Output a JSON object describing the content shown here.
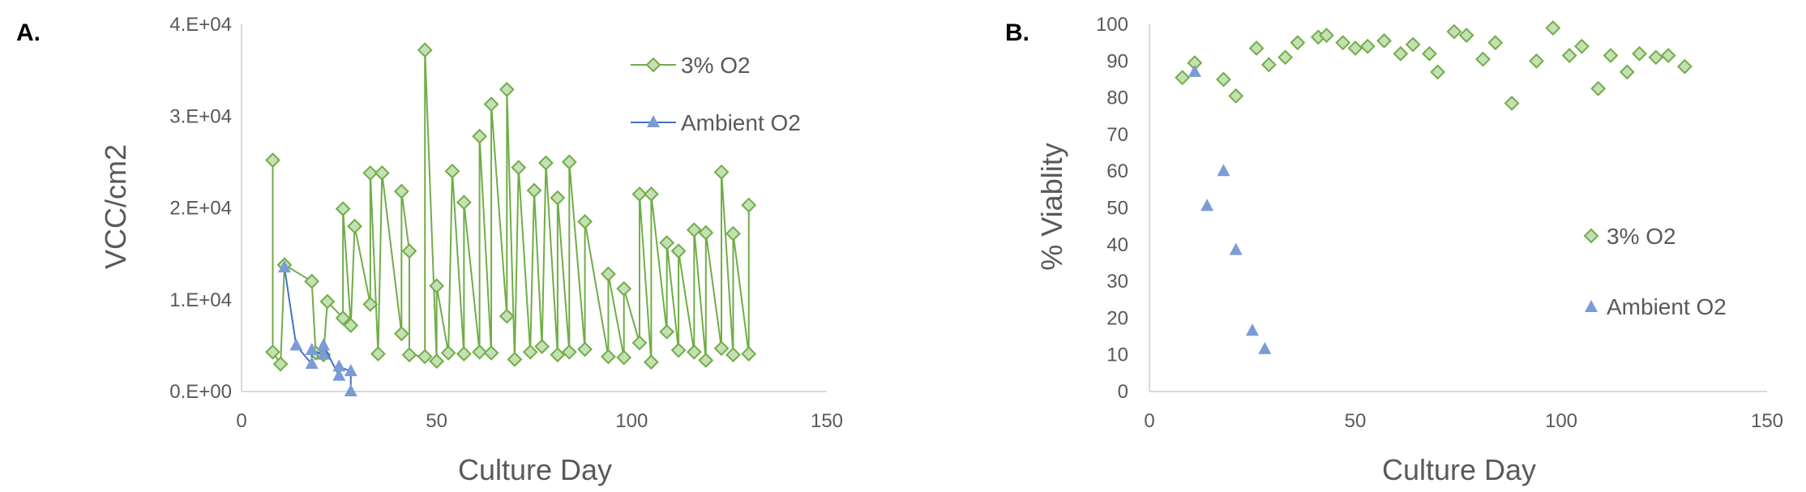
{
  "colors": {
    "series_3pct": "#70AD47",
    "series_3pct_fill": "#C5E0B4",
    "series_ambient": "#4472C4",
    "series_ambient_fill": "#7B9BD6",
    "axis": "#D9D9D9",
    "text": "#595959"
  },
  "chart_data": [
    {
      "panel_label": "A.",
      "type": "line",
      "xlabel": "Culture Day",
      "ylabel": "VCC/cm2",
      "xlim": [
        0,
        150
      ],
      "ylim": [
        0,
        40000
      ],
      "xticks": [
        0,
        50,
        100,
        150
      ],
      "xtick_labels": [
        "0",
        "50",
        "100",
        "150"
      ],
      "yticks": [
        0,
        10000,
        20000,
        30000,
        40000
      ],
      "ytick_labels": [
        "0.E+00",
        "1.E+04",
        "2.E+04",
        "3.E+04",
        "4.E+04"
      ],
      "grid": false,
      "legend_position": "top-right",
      "series": [
        {
          "name": "3% O2",
          "marker": "diamond",
          "x": [
            8,
            8,
            10,
            11,
            18,
            19,
            21,
            22,
            26,
            26,
            28,
            29,
            33,
            33,
            35,
            36,
            41,
            41,
            43,
            43,
            47,
            47,
            50,
            50,
            53,
            54,
            57,
            57,
            61,
            61,
            64,
            64,
            68,
            68,
            70,
            71,
            74,
            75,
            77,
            78,
            81,
            81,
            84,
            84,
            88,
            88,
            94,
            94,
            98,
            98,
            102,
            102,
            105,
            105,
            109,
            109,
            112,
            112,
            116,
            116,
            119,
            119,
            123,
            123,
            126,
            126,
            130,
            130
          ],
          "y": [
            25200,
            4300,
            3000,
            13800,
            12000,
            4200,
            4000,
            9800,
            8000,
            19900,
            7200,
            18000,
            9500,
            23800,
            4100,
            23800,
            6300,
            21800,
            15300,
            4000,
            3800,
            37200,
            3300,
            11500,
            4200,
            24000,
            4100,
            20600,
            4300,
            27800,
            4200,
            31300,
            8200,
            32900,
            3500,
            24400,
            4300,
            21900,
            4900,
            24900,
            4000,
            21100,
            4300,
            25000,
            4600,
            18500,
            3800,
            12800,
            3700,
            11200,
            5300,
            21500,
            3200,
            21500,
            6500,
            16200,
            4500,
            15300,
            4300,
            17600,
            3400,
            17300,
            4700,
            23900,
            4000,
            17200,
            4100,
            20300
          ]
        },
        {
          "name": "Ambient O2",
          "marker": "triangle",
          "x": [
            11,
            14,
            18,
            18,
            21,
            21,
            25,
            25,
            28,
            28
          ],
          "y": [
            13500,
            5000,
            3000,
            4500,
            4000,
            5000,
            1700,
            2700,
            2200,
            0
          ]
        }
      ]
    },
    {
      "panel_label": "B.",
      "type": "scatter",
      "xlabel": "Culture Day",
      "ylabel": "% Viablity",
      "xlim": [
        0,
        150
      ],
      "ylim": [
        0,
        100
      ],
      "xticks": [
        0,
        50,
        100,
        150
      ],
      "xtick_labels": [
        "0",
        "50",
        "100",
        "150"
      ],
      "yticks": [
        0,
        10,
        20,
        30,
        40,
        50,
        60,
        70,
        80,
        90,
        100
      ],
      "ytick_labels": [
        "0",
        "10",
        "20",
        "30",
        "40",
        "50",
        "60",
        "70",
        "80",
        "90",
        "100"
      ],
      "grid": false,
      "legend_position": "center-right",
      "series": [
        {
          "name": "3% O2",
          "marker": "diamond",
          "x": [
            8,
            11,
            18,
            21,
            26,
            29,
            33,
            36,
            41,
            43,
            47,
            50,
            53,
            57,
            61,
            64,
            68,
            70,
            74,
            77,
            81,
            84,
            88,
            94,
            98,
            102,
            105,
            109,
            112,
            116,
            119,
            123,
            126,
            130
          ],
          "y": [
            85.5,
            89.5,
            85,
            80.5,
            93.5,
            89,
            91,
            95,
            96.5,
            97,
            95,
            93.5,
            94,
            95.5,
            92,
            94.5,
            92,
            87,
            98,
            97,
            90.5,
            95,
            78.5,
            90,
            99,
            91.5,
            94,
            82.5,
            91.5,
            87,
            92,
            91,
            91.5,
            88.5
          ]
        },
        {
          "name": "Ambient O2",
          "marker": "triangle",
          "x": [
            11,
            14,
            18,
            21,
            25,
            28
          ],
          "y": [
            87,
            50.5,
            60,
            38.5,
            16.5,
            11.5
          ]
        }
      ]
    }
  ]
}
